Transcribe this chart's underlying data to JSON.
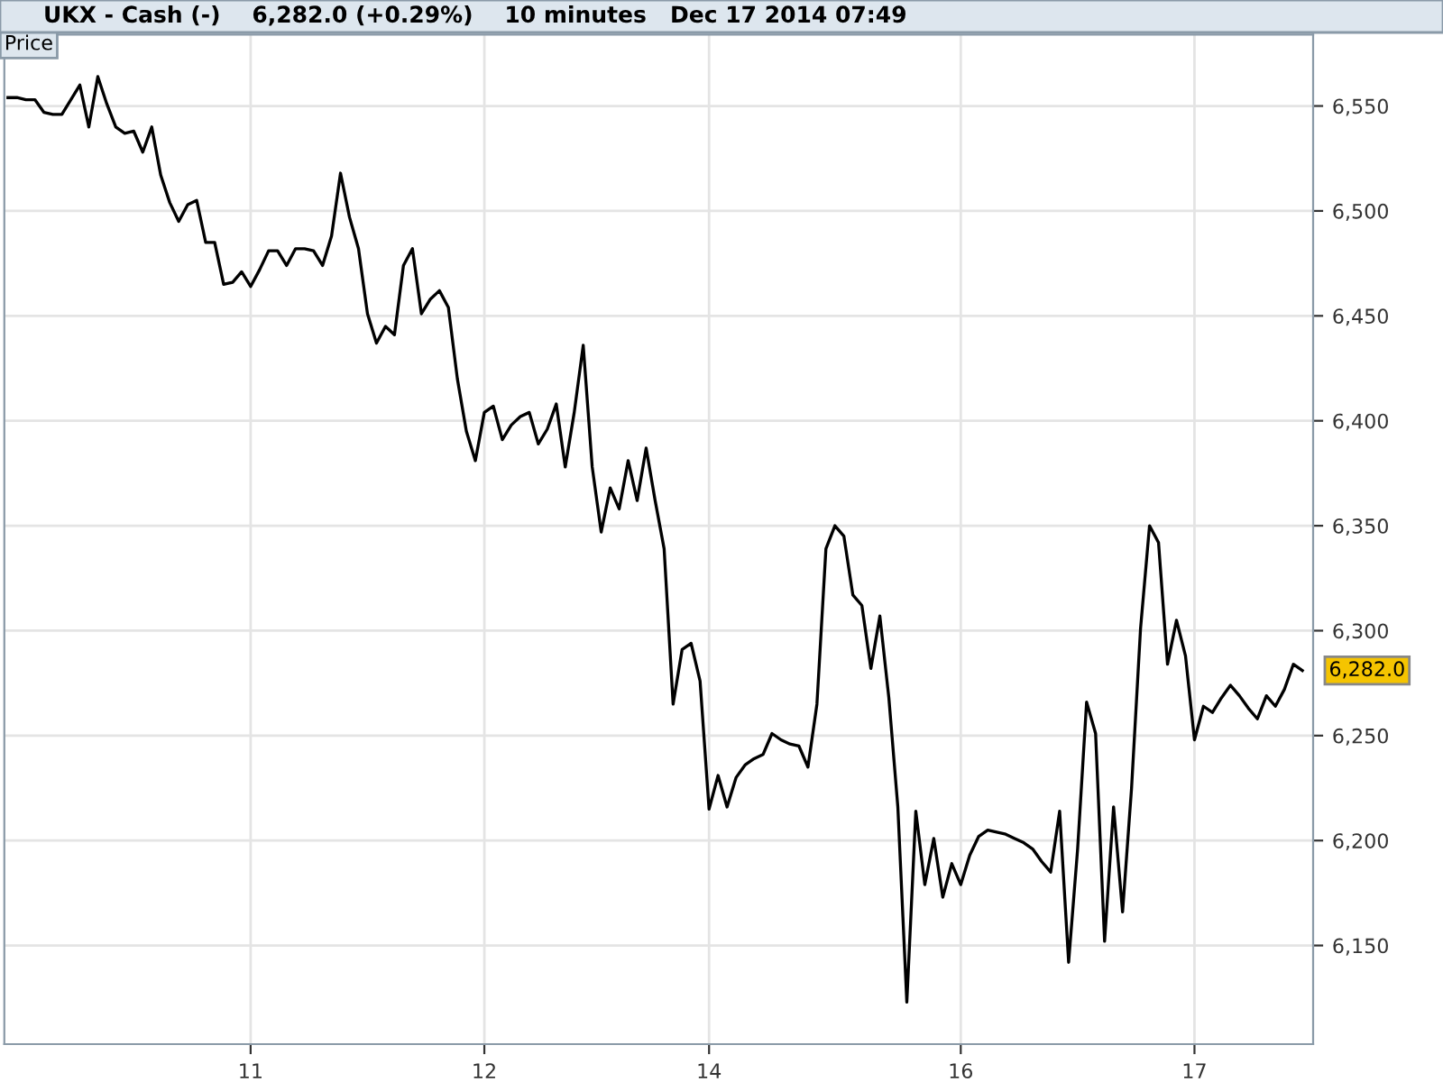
{
  "chart_data": {
    "type": "line",
    "title": "UKX - Cash (-)    6,282.0 (+0.29%)    10 minutes   Dec 17 2014 07:49",
    "annotations": [
      "Price",
      "6,282.0"
    ],
    "categories": [
      null,
      null,
      null,
      null,
      null,
      null,
      null,
      null,
      null,
      null,
      null,
      null,
      null,
      null,
      null,
      null,
      null,
      null,
      null,
      null,
      null,
      null,
      null,
      null,
      null,
      null,
      null,
      "11",
      null,
      null,
      null,
      null,
      null,
      null,
      null,
      null,
      null,
      null,
      null,
      null,
      null,
      null,
      null,
      null,
      null,
      null,
      null,
      null,
      null,
      null,
      null,
      null,
      null,
      "12",
      null,
      null,
      null,
      null,
      null,
      null,
      null,
      null,
      null,
      null,
      null,
      null,
      null,
      null,
      null,
      null,
      null,
      null,
      null,
      null,
      null,
      null,
      null,
      null,
      "14",
      null,
      null,
      null,
      null,
      null,
      null,
      null,
      null,
      null,
      null,
      null,
      null,
      null,
      null,
      null,
      null,
      null,
      null,
      null,
      null,
      null,
      null,
      null,
      null,
      null,
      null,
      null,
      "16",
      null,
      null,
      null,
      null,
      null,
      null,
      null,
      null,
      null,
      null,
      null,
      null,
      null,
      null,
      null,
      null,
      null,
      null,
      null,
      null,
      null,
      null,
      null,
      null,
      null,
      "17",
      null,
      null,
      null,
      null,
      null,
      null,
      null,
      null,
      null,
      null,
      null,
      null
    ],
    "ylim": [
      6103,
      6584
    ],
    "yticks": [
      {
        "value": 6150,
        "label": "6,150"
      },
      {
        "value": 6200,
        "label": "6,200"
      },
      {
        "value": 6250,
        "label": "6,250"
      },
      {
        "value": 6300,
        "label": "6,300"
      },
      {
        "value": 6350,
        "label": "6,350"
      },
      {
        "value": 6400,
        "label": "6,400"
      },
      {
        "value": 6450,
        "label": "6,450"
      },
      {
        "value": 6500,
        "label": "6,500"
      },
      {
        "value": 6550,
        "label": "6,550"
      }
    ],
    "grid": true,
    "marker": "none",
    "line_style": "solid",
    "series": [
      {
        "color": "#000000",
        "values": [
          6554,
          6554,
          6553,
          6553,
          6547,
          6546,
          6546,
          6553,
          6560,
          6540,
          6564,
          6551,
          6540,
          6537,
          6538,
          6528,
          6540,
          6517,
          6504,
          6495,
          6503,
          6505,
          6485,
          6485,
          6465,
          6466,
          6471,
          6464,
          6472,
          6481,
          6481,
          6474,
          6482,
          6482,
          6481,
          6474,
          6488,
          6518,
          6497,
          6482,
          6451,
          6437,
          6445,
          6441,
          6474,
          6482,
          6451,
          6458,
          6462,
          6454,
          6420,
          6395,
          6381,
          6404,
          6407,
          6391,
          6398,
          6402,
          6404,
          6389,
          6396,
          6408,
          6378,
          6404,
          6436,
          6378,
          6347,
          6368,
          6358,
          6381,
          6362,
          6387,
          6362,
          6339,
          6265,
          6291,
          6294,
          6276,
          6215,
          6231,
          6216,
          6230,
          6236,
          6239,
          6241,
          6251,
          6248,
          6246,
          6245,
          6235,
          6265,
          6339,
          6350,
          6345,
          6317,
          6312,
          6282,
          6307,
          6268,
          6216,
          6123,
          6214,
          6179,
          6201,
          6173,
          6189,
          6179,
          6193,
          6202,
          6205,
          6204,
          6203,
          6201,
          6199,
          6196,
          6190,
          6185,
          6214,
          6142,
          6196,
          6266,
          6251,
          6152,
          6216,
          6166,
          6225,
          6301,
          6350,
          6342,
          6284,
          6305,
          6288,
          6248,
          6264,
          6261,
          6268,
          6274,
          6269,
          6263,
          6258,
          6269,
          6264,
          6272,
          6284,
          6281
        ]
      }
    ]
  }
}
